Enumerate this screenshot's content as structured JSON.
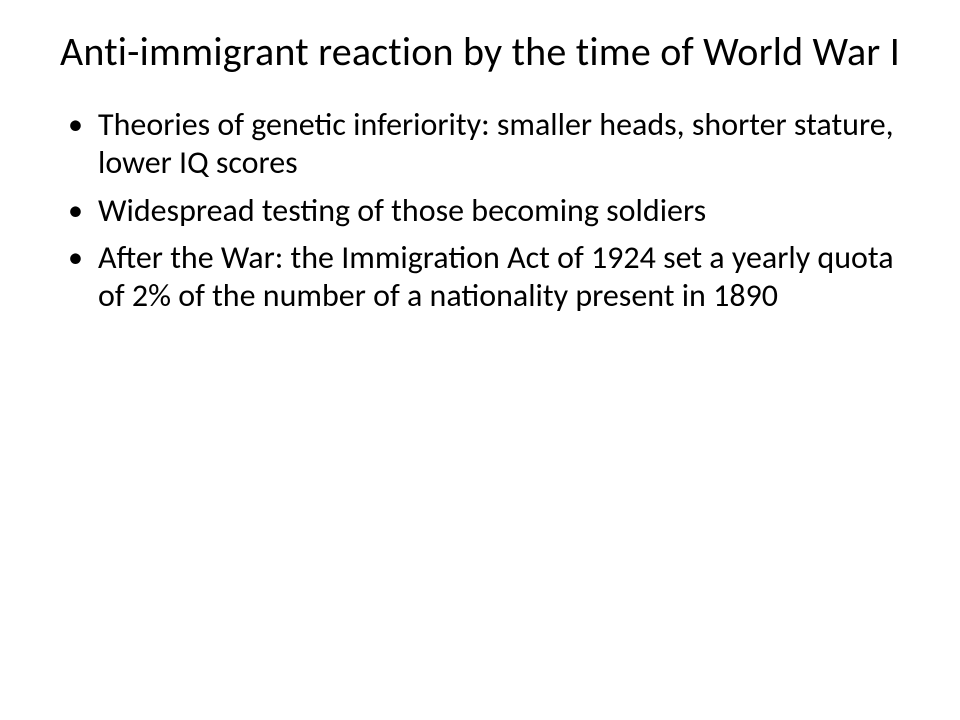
{
  "slide": {
    "title": "Anti-immigrant reaction  by the time of World War I",
    "title_fontsize": 40,
    "bullets": [
      "Theories of genetic inferiority: smaller heads, shorter stature, lower IQ scores",
      "Widespread testing of those becoming soldiers",
      "After the War: the Immigration Act of 1924 set a yearly quota of 2% of the number of a nationality present in 1890"
    ],
    "bullet_fontsize": 32,
    "bullet_color": "#000000",
    "background_color": "#ffffff",
    "text_color": "#000000",
    "font_family": "Calibri"
  }
}
